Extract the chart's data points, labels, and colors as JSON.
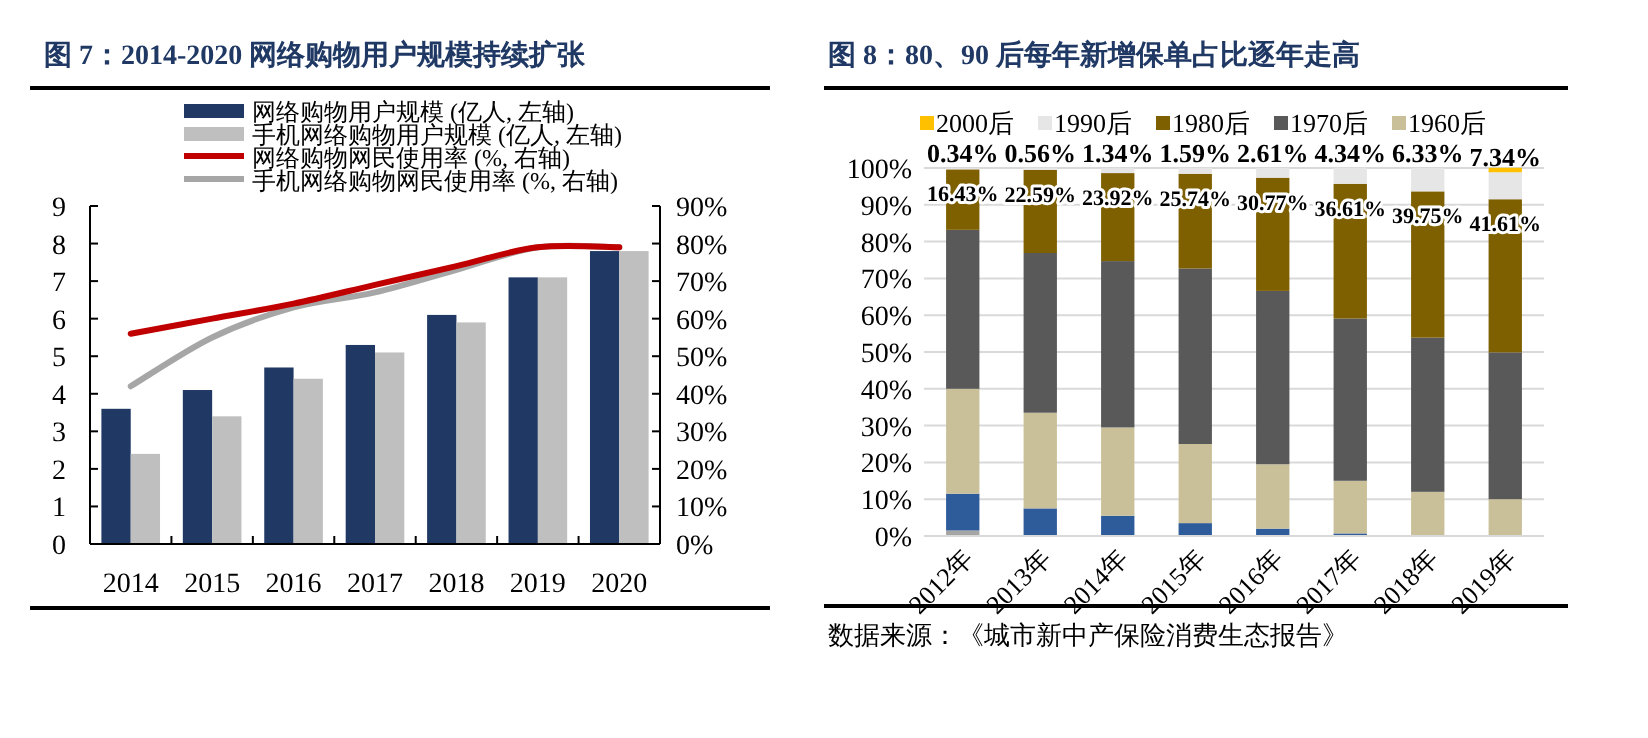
{
  "chart_data": [
    {
      "type": "bar",
      "title": "图 7：2014-2020 网络购物用户规模持续扩张",
      "categories": [
        "2014",
        "2015",
        "2016",
        "2017",
        "2018",
        "2019",
        "2020"
      ],
      "ylim": [
        0,
        9
      ],
      "yticks": [
        0,
        1,
        2,
        3,
        4,
        5,
        6,
        7,
        8,
        9
      ],
      "y2lim": [
        0,
        90
      ],
      "y2ticks": [
        {
          "value": 0,
          "label": "0%"
        },
        {
          "value": 10,
          "label": "10%"
        },
        {
          "value": 20,
          "label": "20%"
        },
        {
          "value": 30,
          "label": "30%"
        },
        {
          "value": 40,
          "label": "40%"
        },
        {
          "value": 50,
          "label": "50%"
        },
        {
          "value": 60,
          "label": "60%"
        },
        {
          "value": 70,
          "label": "70%"
        },
        {
          "value": 80,
          "label": "80%"
        },
        {
          "value": 90,
          "label": "90%"
        }
      ],
      "legend": "top",
      "series": [
        {
          "name": "网络购物用户规模 (亿人, 左轴)",
          "color": "#1f3864",
          "values": [
            3.6,
            4.1,
            4.7,
            5.3,
            6.1,
            7.1,
            7.8
          ]
        },
        {
          "name": "手机网络购物用户规模 (亿人, 左轴)",
          "color": "#bfbfbf",
          "values": [
            2.4,
            3.4,
            4.4,
            5.1,
            5.9,
            7.1,
            7.8
          ]
        },
        {
          "name": "网络购物网民使用率 (%, 右轴)",
          "type": "line",
          "axis": "y2",
          "color": "#c00000",
          "values": [
            56,
            60,
            64,
            69,
            74,
            79,
            79
          ]
        },
        {
          "name": "手机网络购物网民使用率 (%, 右轴)",
          "type": "line",
          "axis": "y2",
          "color": "#a6a6a6",
          "values": [
            42,
            55,
            63,
            67,
            73,
            79,
            79
          ]
        }
      ]
    },
    {
      "type": "bar",
      "stacked": true,
      "title": "图 8：80、90 后每年新增保单占比逐年走高",
      "categories": [
        "2012年",
        "2013年",
        "2014年",
        "2015年",
        "2016年",
        "2017年",
        "2018年",
        "2019年"
      ],
      "ylim": [
        0,
        100
      ],
      "yticks": [
        {
          "value": 0,
          "label": "0%"
        },
        {
          "value": 10,
          "label": "10%"
        },
        {
          "value": 20,
          "label": "20%"
        },
        {
          "value": 30,
          "label": "30%"
        },
        {
          "value": 40,
          "label": "40%"
        },
        {
          "value": 50,
          "label": "50%"
        },
        {
          "value": 60,
          "label": "60%"
        },
        {
          "value": 70,
          "label": "70%"
        },
        {
          "value": 80,
          "label": "80%"
        },
        {
          "value": 90,
          "label": "90%"
        },
        {
          "value": 100,
          "label": "100%"
        }
      ],
      "grid": "y",
      "legend": "top",
      "annotations": [
        "数据来源：《城市新中产保险消费生态报告》"
      ],
      "series": [
        {
          "color": "#a5a5a5",
          "values": [
            1.5,
            null,
            null,
            null,
            null,
            null,
            null,
            null
          ]
        },
        {
          "color": "#2e5c9a",
          "values": [
            10,
            7.5,
            5.5,
            3.5,
            2,
            0.7,
            null,
            null
          ]
        },
        {
          "name": "1960后",
          "color": "#c9c09a",
          "values": [
            28.5,
            26,
            24,
            21.5,
            17.5,
            14.3,
            12,
            10
          ]
        },
        {
          "name": "1970后",
          "color": "#595959",
          "values": [
            43.2,
            43.4,
            45.2,
            47.7,
            47.1,
            44.1,
            41.9,
            39.9
          ]
        },
        {
          "name": "1980后",
          "color": "#7f6000",
          "values": [
            16.43,
            22.59,
            23.92,
            25.74,
            30.77,
            36.61,
            39.75,
            41.61
          ],
          "value_labels": [
            "16.43%",
            "22.59%",
            "23.92%",
            "25.74%",
            "30.77%",
            "36.61%",
            "39.75%",
            "41.61%"
          ]
        },
        {
          "name": "1990后",
          "color": "#e7e6e6",
          "values": [
            0.34,
            0.56,
            1.34,
            1.59,
            2.61,
            4.34,
            6.33,
            7.34
          ],
          "value_labels": [
            "0.34%",
            "0.56%",
            "1.34%",
            "1.59%",
            "2.61%",
            "4.34%",
            "6.33%",
            "7.34%"
          ]
        },
        {
          "name": "2000后",
          "color": "#ffc000",
          "values": [
            null,
            null,
            null,
            null,
            null,
            null,
            null,
            1.2
          ]
        }
      ]
    }
  ]
}
